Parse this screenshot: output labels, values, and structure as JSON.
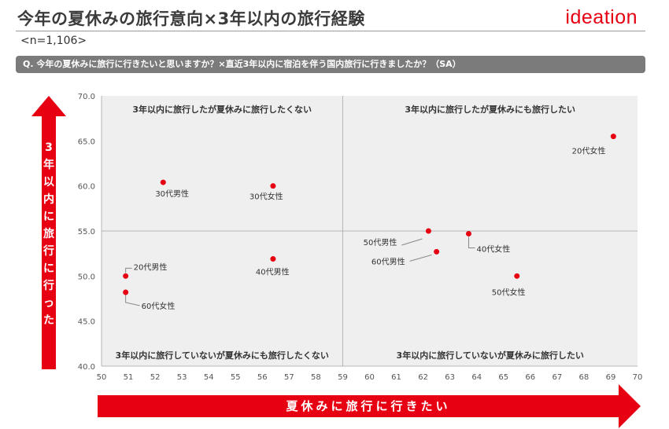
{
  "header": {
    "title": "今年の夏休みの旅行意向×3年以内の旅行経験",
    "logo": "ideation",
    "sample": "<n=1,106>"
  },
  "question": "Q. 今年の夏休みに旅行に行きたいと思いますか？×直近3年以内に宿泊を伴う国内旅行に行きましたか？（SA）",
  "colors": {
    "accent": "#e60012",
    "plot_bg": "#efefef",
    "axis_line": "#b5b5b5",
    "qbar": "#7b7b7b"
  },
  "chart_data": {
    "type": "scatter",
    "xlim": [
      50,
      70
    ],
    "ylim": [
      40.0,
      70.0
    ],
    "x_ticks": [
      "50",
      "51",
      "52",
      "53",
      "54",
      "55",
      "56",
      "57",
      "58",
      "59",
      "60",
      "61",
      "62",
      "63",
      "64",
      "65",
      "66",
      "67",
      "68",
      "69",
      "70"
    ],
    "y_ticks": [
      "40.0",
      "45.0",
      "50.0",
      "55.0",
      "60.0",
      "65.0",
      "70.0"
    ],
    "xlabel": "夏休みに旅行に行きたい",
    "ylabel": "3年以内に旅行に行った",
    "divider": {
      "x": 59,
      "y": 55
    },
    "quadrants": {
      "top_left": "3年以内に旅行したが夏休みに旅行したくない",
      "top_right": "3年以内に旅行したが夏休みにも旅行したい",
      "bottom_left": "3年以内に旅行していないが夏休みにも旅行したくない",
      "bottom_right": "3年以内に旅行していないが夏休みに旅行したい"
    },
    "grid": false,
    "points": [
      {
        "label": "20代女性",
        "x": 69.1,
        "y": 65.5
      },
      {
        "label": "30代男性",
        "x": 52.3,
        "y": 60.4
      },
      {
        "label": "30代女性",
        "x": 56.4,
        "y": 60.0
      },
      {
        "label": "50代男性",
        "x": 62.2,
        "y": 55.0
      },
      {
        "label": "40代女性",
        "x": 63.7,
        "y": 54.7
      },
      {
        "label": "60代男性",
        "x": 62.5,
        "y": 52.7
      },
      {
        "label": "40代男性",
        "x": 56.4,
        "y": 51.9
      },
      {
        "label": "20代男性",
        "x": 50.9,
        "y": 50.0
      },
      {
        "label": "50代女性",
        "x": 65.5,
        "y": 50.0
      },
      {
        "label": "60代女性",
        "x": 50.9,
        "y": 48.2
      }
    ]
  }
}
